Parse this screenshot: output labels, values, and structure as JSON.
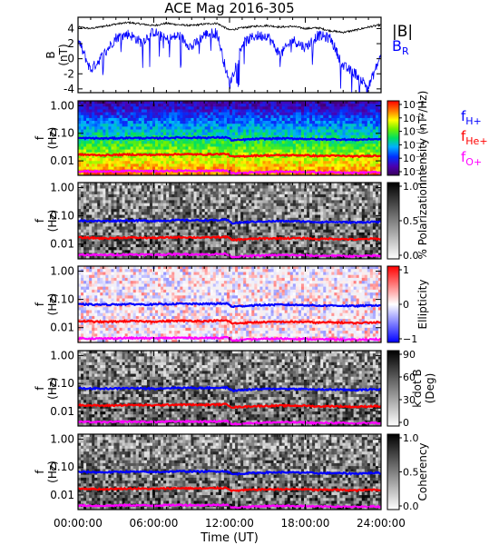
{
  "title": "ACE Mag 2016-305",
  "legend_top": {
    "b_mag": "|B|",
    "b_r_main": "B",
    "b_r_sub": "R"
  },
  "legend_cyclotron": [
    {
      "main": "f",
      "sub": "H+",
      "color": "#0000ff"
    },
    {
      "main": "f",
      "sub": "He+",
      "color": "#ff0000"
    },
    {
      "main": "f",
      "sub": "O+",
      "color": "#ff00ff"
    }
  ],
  "x_axis": {
    "label": "Time (UT)",
    "ticks": [
      "00:00:00",
      "06:00:00",
      "12:00:00",
      "18:00:00",
      "24:00:00"
    ]
  },
  "chart_data": [
    {
      "type": "line",
      "panel": "magnetic-field",
      "ylabel_main": "B",
      "ylabel_unit": "(nT)",
      "ylim": [
        -4.5,
        5.5
      ],
      "yticks": [
        "4",
        "2",
        "0",
        "-2",
        "-4"
      ],
      "x_hours": [
        0,
        1,
        2,
        3,
        4,
        5,
        6,
        7,
        8,
        9,
        10,
        11,
        12,
        13,
        14,
        15,
        16,
        17,
        18,
        19,
        20,
        21,
        22,
        23,
        24
      ],
      "series": [
        {
          "name": "|B|",
          "color": "#000000",
          "values": [
            4.2,
            4.0,
            4.3,
            4.6,
            4.8,
            4.6,
            4.4,
            4.7,
            4.5,
            4.4,
            4.6,
            4.7,
            3.8,
            4.1,
            4.3,
            4.4,
            4.2,
            4.3,
            4.0,
            4.1,
            3.7,
            3.5,
            3.8,
            4.2,
            4.5
          ]
        },
        {
          "name": "B_R",
          "color": "#0000ff",
          "values": [
            2.5,
            -1.5,
            0.5,
            2.8,
            3.3,
            2.2,
            3.6,
            2.5,
            3.1,
            1.5,
            3.2,
            3.5,
            -3.5,
            2.0,
            3.0,
            3.1,
            0.5,
            2.5,
            1.5,
            3.1,
            2.7,
            -1.0,
            -2.0,
            -3.8,
            0.5
          ]
        }
      ]
    },
    {
      "type": "heatmap",
      "panel": "intensity",
      "ylabel_main": "f",
      "ylabel_unit": "(Hz)",
      "ylim": [
        0.003,
        1.5
      ],
      "yticks": [
        "1.00",
        "0.10",
        "0.01"
      ],
      "colorbar_label": "Intensity (nT²/Hz)",
      "colorbar_ticks": [
        "10⁻¹",
        "10⁻²",
        "10⁻³",
        "10⁻⁴",
        "10⁻⁵",
        "10⁻⁶"
      ],
      "colorbar_scale": "rainbow"
    },
    {
      "type": "heatmap",
      "panel": "polarization",
      "ylabel_main": "f",
      "ylabel_unit": "(Hz)",
      "ylim": [
        0.003,
        1.5
      ],
      "yticks": [
        "1.00",
        "0.10",
        "0.01"
      ],
      "colorbar_label": "% Polarization",
      "colorbar_ticks": [
        "1.0",
        "0.5",
        "0.0"
      ],
      "colorbar_scale": "grayscale"
    },
    {
      "type": "heatmap",
      "panel": "ellipticity",
      "ylabel_main": "f",
      "ylabel_unit": "(Hz)",
      "ylim": [
        0.003,
        1.5
      ],
      "yticks": [
        "1.00",
        "0.10",
        "0.01"
      ],
      "colorbar_label": "Ellipticity",
      "colorbar_ticks": [
        "1",
        "0",
        "−1"
      ],
      "colorbar_scale": "blue-white-red"
    },
    {
      "type": "heatmap",
      "panel": "wave-normal-angle",
      "ylabel_main": "f",
      "ylabel_unit": "(Hz)",
      "ylim": [
        0.003,
        1.5
      ],
      "yticks": [
        "1.00",
        "0.10",
        "0.01"
      ],
      "colorbar_label": "k dot B",
      "colorbar_label2": "(Deg)",
      "colorbar_ticks": [
        "90",
        "60",
        "30",
        "0"
      ],
      "colorbar_scale": "grayscale"
    },
    {
      "type": "heatmap",
      "panel": "coherency",
      "ylabel_main": "f",
      "ylabel_unit": "(Hz)",
      "ylim": [
        0.003,
        1.5
      ],
      "yticks": [
        "1.00",
        "0.10",
        "0.01"
      ],
      "colorbar_label": "Coherency",
      "colorbar_ticks": [
        "1.0",
        "0.5",
        "0.0"
      ],
      "colorbar_scale": "grayscale"
    }
  ],
  "cyclotron_frequencies": {
    "x_hours": [
      0,
      2,
      4,
      6,
      8,
      10,
      11.8,
      12.2,
      14,
      16,
      18,
      19,
      20,
      22,
      23.5,
      24
    ],
    "H+": [
      0.067,
      0.065,
      0.068,
      0.066,
      0.07,
      0.069,
      0.071,
      0.055,
      0.062,
      0.065,
      0.063,
      0.06,
      0.061,
      0.058,
      0.062,
      0.06
    ],
    "He+": [
      0.017,
      0.016,
      0.017,
      0.0165,
      0.0175,
      0.017,
      0.018,
      0.014,
      0.0155,
      0.016,
      0.016,
      0.015,
      0.0155,
      0.0145,
      0.0155,
      0.015
    ],
    "O+": [
      0.0042,
      0.0041,
      0.0043,
      0.0042,
      0.0044,
      0.0043,
      0.0045,
      0.0035,
      0.0039,
      0.0041,
      0.004,
      0.0038,
      0.0039,
      0.0037,
      0.0039,
      0.0038
    ]
  }
}
